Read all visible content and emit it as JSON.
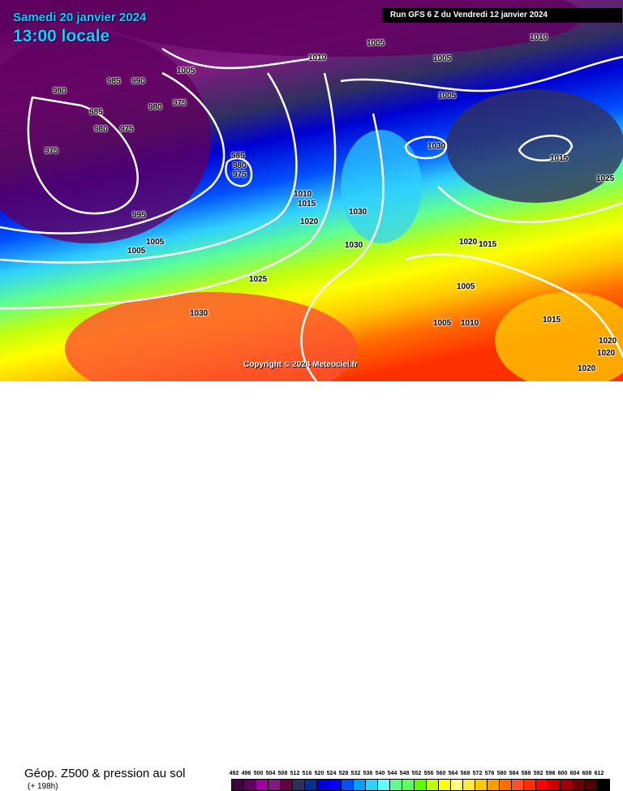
{
  "header": {
    "date": "Samedi 20 janvier 2024",
    "time": "13:00 locale",
    "run": "Run GFS 6 Z du Vendredi 12 janvier 2024"
  },
  "copyright": "Copyright © 2024 Meteociel.fr",
  "footer": {
    "title": "Géop. Z500 & pression au sol",
    "subtitle": "(+ 198h)"
  },
  "legend": {
    "ticks": [
      "492",
      "496",
      "500",
      "504",
      "508",
      "512",
      "516",
      "520",
      "524",
      "528",
      "532",
      "536",
      "540",
      "544",
      "548",
      "552",
      "556",
      "560",
      "564",
      "568",
      "572",
      "576",
      "580",
      "584",
      "588",
      "592",
      "596",
      "600",
      "604",
      "608",
      "612"
    ],
    "colors": [
      "#3f003f",
      "#5f005f",
      "#a000a0",
      "#801a80",
      "#600040",
      "#303060",
      "#003090",
      "#0000d0",
      "#0000ff",
      "#0050ff",
      "#00a0ff",
      "#30d0ff",
      "#60ffff",
      "#60ff90",
      "#60ff60",
      "#60ff00",
      "#c0ff10",
      "#ffff00",
      "#ffff80",
      "#ffe840",
      "#ffc800",
      "#ff9c00",
      "#ff6c00",
      "#ff5030",
      "#ff3000",
      "#ff0000",
      "#c80000",
      "#a00000",
      "#700000",
      "#500000",
      "#000000"
    ]
  },
  "pressure_labels": [
    "985",
    "990",
    "980",
    "985",
    "980",
    "975",
    "980",
    "975",
    "975",
    "1005",
    "1010",
    "1005",
    "1005",
    "1010",
    "1005",
    "985",
    "980",
    "975",
    "1030",
    "1015",
    "1025",
    "995",
    "1010",
    "1015",
    "1020",
    "1030",
    "1030",
    "1005",
    "1005",
    "1020",
    "1015",
    "1025",
    "1005",
    "1030",
    "1005",
    "1010",
    "1015",
    "1020",
    "1020",
    "1020"
  ]
}
